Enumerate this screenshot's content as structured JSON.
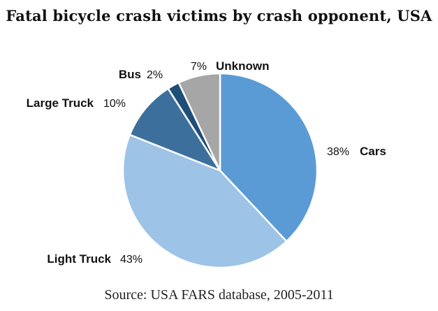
{
  "chart_data": {
    "type": "pie",
    "title": "Fatal bicycle crash victims by crash opponent, USA",
    "source": "Source: USA FARS database, 2005-2011",
    "slices": [
      {
        "label": "Cars",
        "value": 38,
        "display": "38%",
        "color": "#5b9bd5"
      },
      {
        "label": "Light Truck",
        "value": 43,
        "display": "43%",
        "color": "#9dc3e6"
      },
      {
        "label": "Large Truck",
        "value": 10,
        "display": "10%",
        "color": "#3d6f9c"
      },
      {
        "label": "Bus",
        "value": 2,
        "display": "2%",
        "color": "#1f4e79"
      },
      {
        "label": "Unknown",
        "value": 7,
        "display": "7%",
        "color": "#a6a6a6"
      }
    ]
  }
}
